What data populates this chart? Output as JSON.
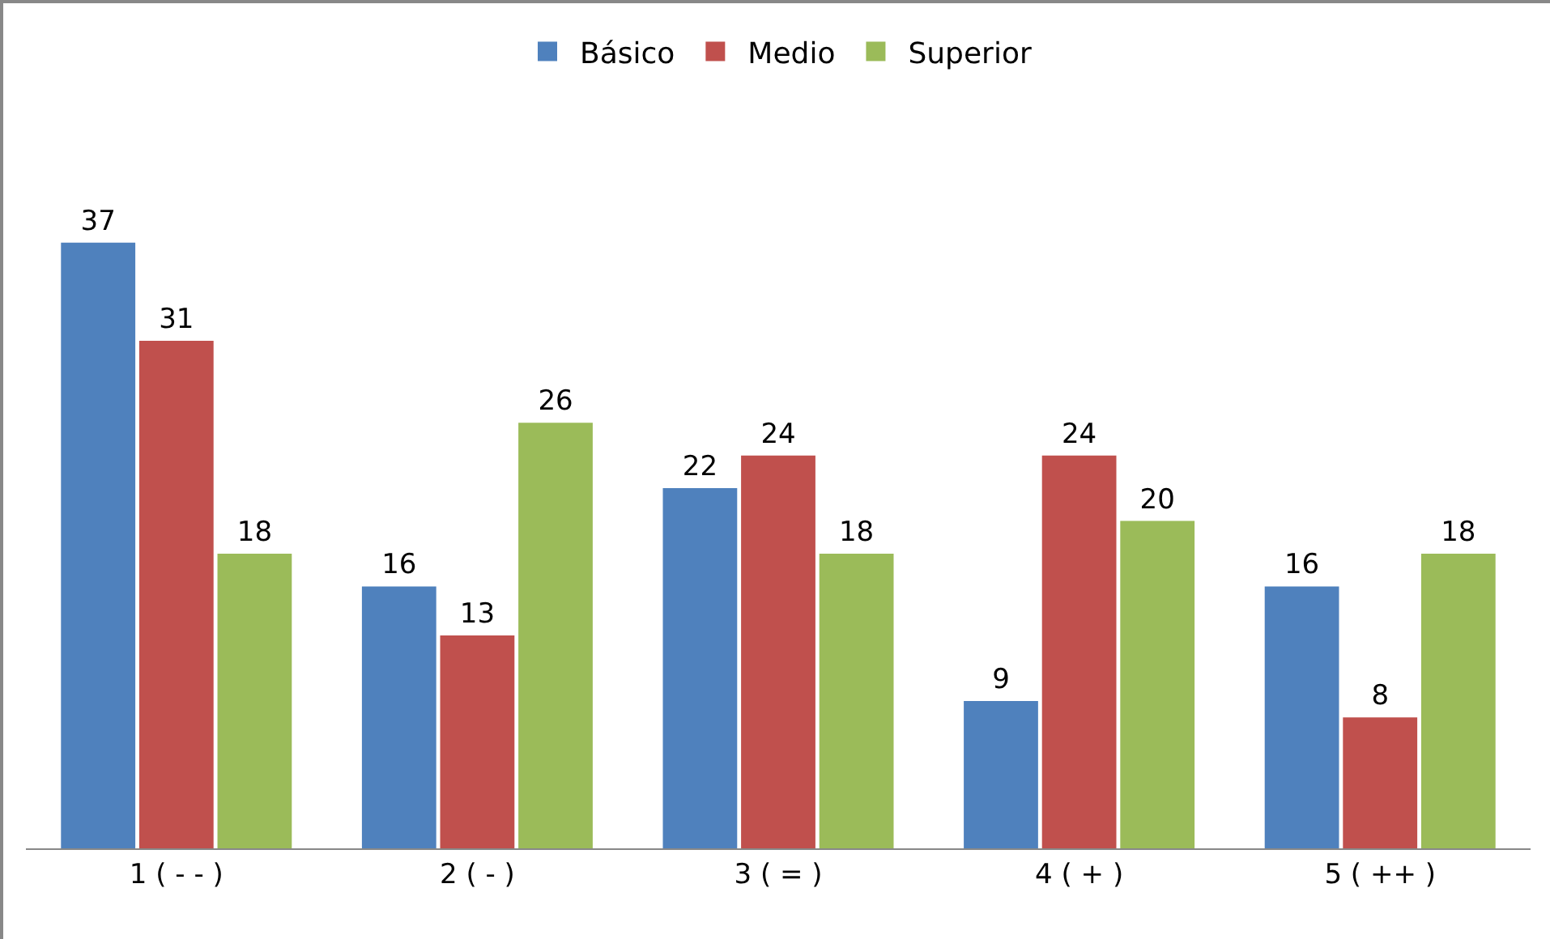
{
  "chart_data": {
    "type": "bar",
    "categories": [
      "1 ( - - )",
      "2 ( - )",
      "3 ( = )",
      "4 ( + )",
      "5 ( ++ )"
    ],
    "series": [
      {
        "name": "Básico",
        "color": "#4f81bd",
        "values": [
          37,
          16,
          22,
          9,
          16
        ]
      },
      {
        "name": "Medio",
        "color": "#c0504d",
        "values": [
          31,
          13,
          24,
          24,
          8
        ]
      },
      {
        "name": "Superior",
        "color": "#9bbb59",
        "values": [
          18,
          26,
          18,
          20,
          18
        ]
      }
    ],
    "data_labels": true,
    "legend": "top",
    "grid": false
  }
}
